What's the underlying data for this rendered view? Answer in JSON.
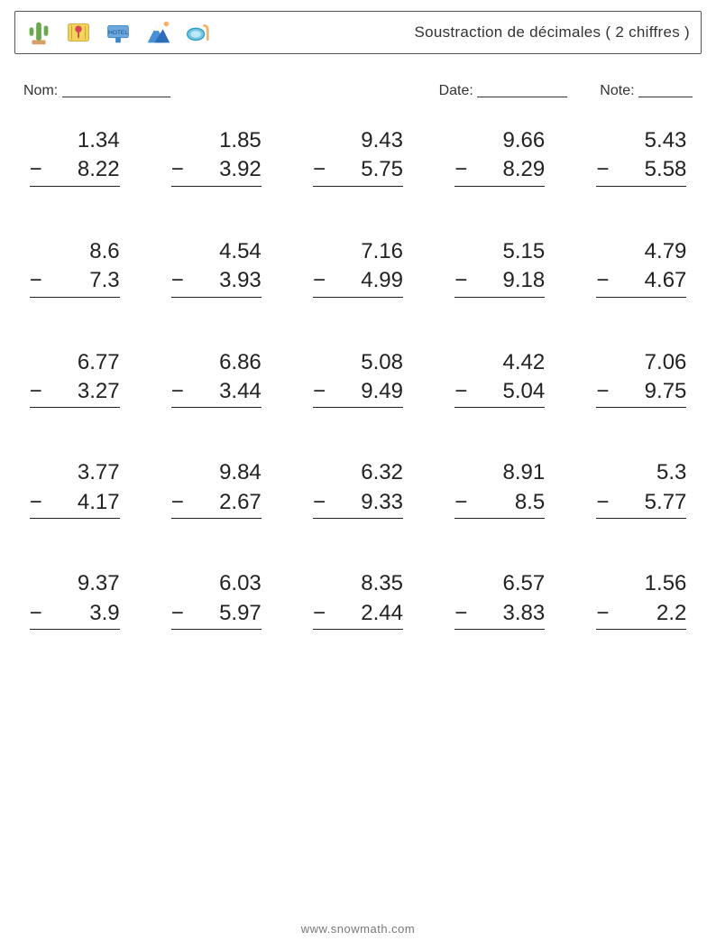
{
  "header": {
    "title": "Soustraction de décimales ( 2 chiffres )",
    "icons": [
      "cactus-icon",
      "map-pin-icon",
      "hotel-icon",
      "mountain-icon",
      "snorkel-icon"
    ]
  },
  "fields": {
    "name_label": "Nom:",
    "date_label": "Date:",
    "note_label": "Note:"
  },
  "operator": "−",
  "problems": [
    {
      "a": "1.34",
      "b": "8.22"
    },
    {
      "a": "1.85",
      "b": "3.92"
    },
    {
      "a": "9.43",
      "b": "5.75"
    },
    {
      "a": "9.66",
      "b": "8.29"
    },
    {
      "a": "5.43",
      "b": "5.58"
    },
    {
      "a": "8.6",
      "b": "7.3"
    },
    {
      "a": "4.54",
      "b": "3.93"
    },
    {
      "a": "7.16",
      "b": "4.99"
    },
    {
      "a": "5.15",
      "b": "9.18"
    },
    {
      "a": "4.79",
      "b": "4.67"
    },
    {
      "a": "6.77",
      "b": "3.27"
    },
    {
      "a": "6.86",
      "b": "3.44"
    },
    {
      "a": "5.08",
      "b": "9.49"
    },
    {
      "a": "4.42",
      "b": "5.04"
    },
    {
      "a": "7.06",
      "b": "9.75"
    },
    {
      "a": "3.77",
      "b": "4.17"
    },
    {
      "a": "9.84",
      "b": "2.67"
    },
    {
      "a": "6.32",
      "b": "9.33"
    },
    {
      "a": "8.91",
      "b": "8.5"
    },
    {
      "a": "5.3",
      "b": "5.77"
    },
    {
      "a": "9.37",
      "b": "3.9"
    },
    {
      "a": "6.03",
      "b": "5.97"
    },
    {
      "a": "8.35",
      "b": "2.44"
    },
    {
      "a": "6.57",
      "b": "3.83"
    },
    {
      "a": "1.56",
      "b": "2.2"
    }
  ],
  "footer": "www.snowmath.com",
  "style": {
    "page_bg": "#ffffff",
    "text_color": "#333333",
    "number_color": "#222222",
    "border_color": "#555555",
    "footer_color": "#777777",
    "title_fontsize": 17,
    "label_fontsize": 16,
    "number_fontsize": 24,
    "footer_fontsize": 13,
    "grid_cols": 5,
    "grid_rows": 5
  }
}
